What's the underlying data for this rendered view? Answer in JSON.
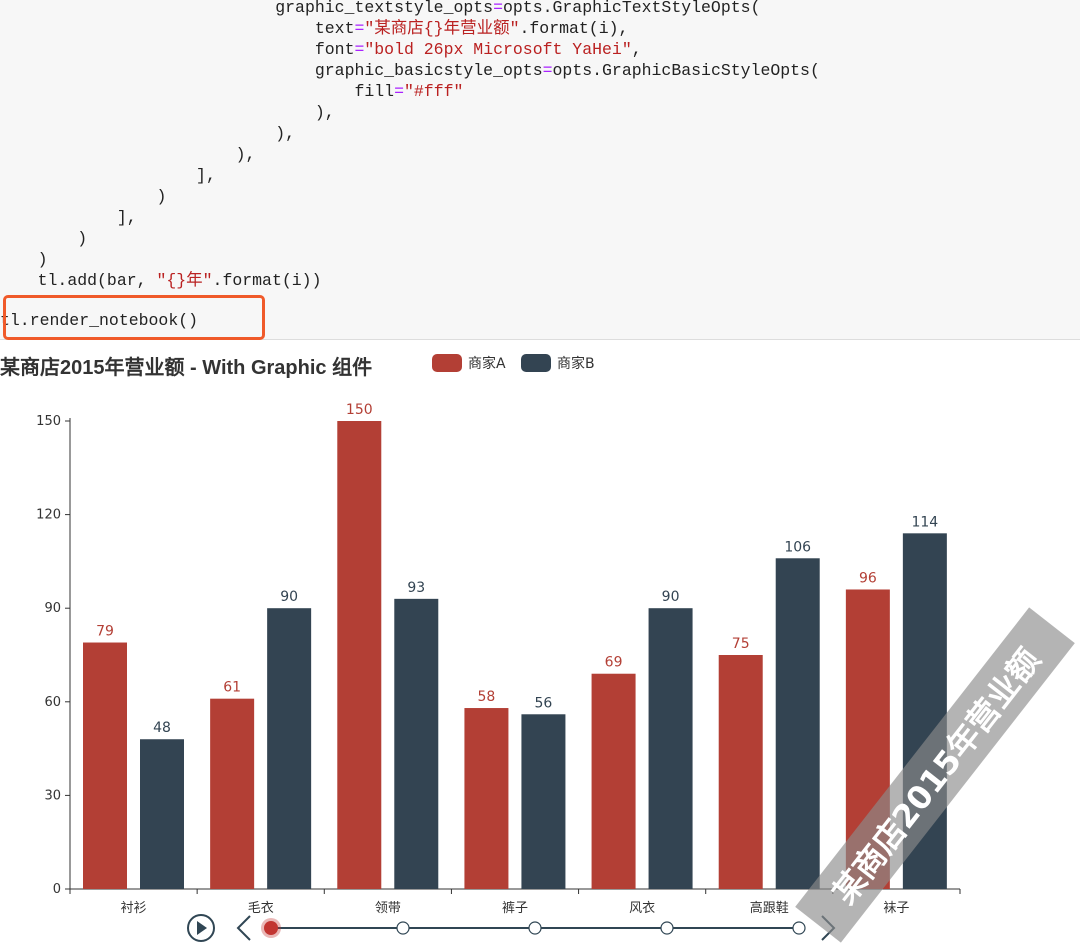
{
  "code": {
    "lines": [
      {
        "indent": "                            ",
        "parts": [
          [
            "graphic_textstyle_opts",
            ""
          ],
          [
            "=",
            "op"
          ],
          [
            "opts.GraphicTextStyleOpts(",
            ""
          ]
        ]
      },
      {
        "indent": "                                ",
        "parts": [
          [
            "text",
            ""
          ],
          [
            "=",
            "op"
          ],
          [
            "\"某商店{}年营业额\"",
            "s"
          ],
          [
            ".format(i),",
            ""
          ]
        ]
      },
      {
        "indent": "                                ",
        "parts": [
          [
            "font",
            ""
          ],
          [
            "=",
            "op"
          ],
          [
            "\"bold 26px Microsoft YaHei\"",
            "s"
          ],
          [
            ",",
            ""
          ]
        ]
      },
      {
        "indent": "                                ",
        "parts": [
          [
            "graphic_basicstyle_opts",
            ""
          ],
          [
            "=",
            "op"
          ],
          [
            "opts.GraphicBasicStyleOpts(",
            ""
          ]
        ]
      },
      {
        "indent": "                                    ",
        "parts": [
          [
            "fill",
            ""
          ],
          [
            "=",
            "op"
          ],
          [
            "\"#fff\"",
            "s"
          ]
        ]
      },
      {
        "indent": "                                ",
        "parts": [
          [
            "),",
            ""
          ]
        ]
      },
      {
        "indent": "                            ",
        "parts": [
          [
            "),",
            ""
          ]
        ]
      },
      {
        "indent": "                        ",
        "parts": [
          [
            "),",
            ""
          ]
        ]
      },
      {
        "indent": "                    ",
        "parts": [
          [
            "],",
            ""
          ]
        ]
      },
      {
        "indent": "                ",
        "parts": [
          [
            ")",
            ""
          ]
        ]
      },
      {
        "indent": "            ",
        "parts": [
          [
            "],",
            ""
          ]
        ]
      },
      {
        "indent": "        ",
        "parts": [
          [
            ")",
            ""
          ]
        ]
      },
      {
        "indent": "    ",
        "parts": [
          [
            ")",
            ""
          ]
        ]
      },
      {
        "indent": "    ",
        "parts": [
          [
            "tl.add(bar, ",
            ""
          ],
          [
            "\"{}年\"",
            "s"
          ],
          [
            ".format(i))",
            ""
          ]
        ]
      }
    ],
    "render_line": "tl.render_notebook()"
  },
  "chart_data": {
    "type": "bar",
    "title": "某商店2015年营业额 - With Graphic 组件",
    "categories": [
      "衬衫",
      "毛衣",
      "领带",
      "裤子",
      "风衣",
      "高跟鞋",
      "袜子"
    ],
    "series": [
      {
        "name": "商家A",
        "color": "#b33f35",
        "values": [
          79,
          61,
          150,
          58,
          69,
          75,
          96
        ]
      },
      {
        "name": "商家B",
        "color": "#334452",
        "values": [
          48,
          90,
          93,
          56,
          90,
          106,
          114
        ]
      }
    ],
    "ylim": [
      0,
      150
    ],
    "yticks": [
      0,
      30,
      60,
      90,
      120,
      150
    ],
    "legend": "top",
    "grid": false
  },
  "timeline": {
    "points": 5,
    "current": 0
  },
  "watermark": "某商店2015年营业额"
}
